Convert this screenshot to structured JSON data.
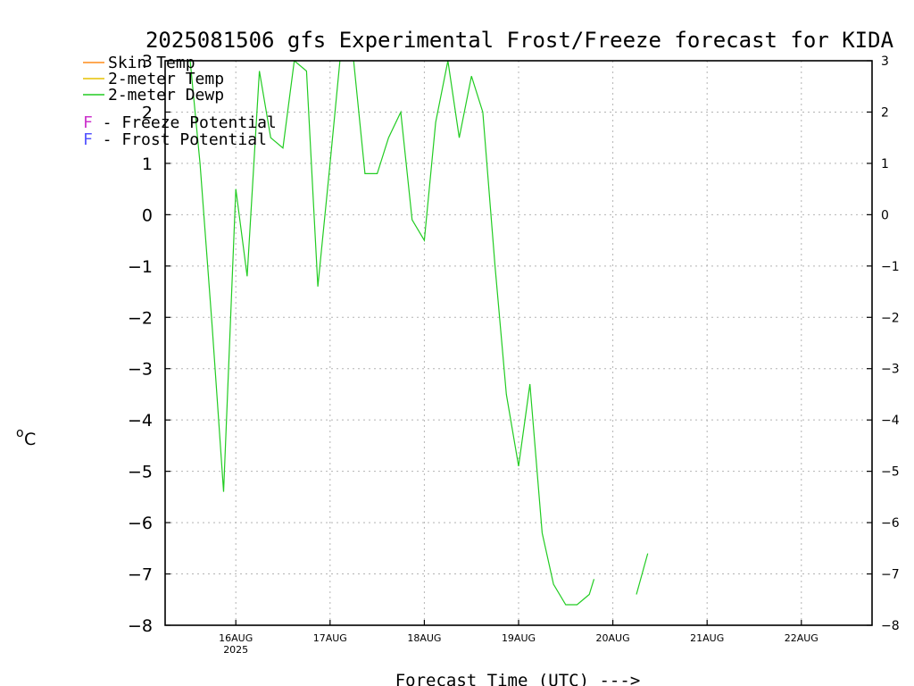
{
  "chart_data": {
    "type": "line",
    "title": "2025081506 gfs Experimental Frost/Freeze forecast for KIDA",
    "xlabel": "Forecast Time (UTC) --->",
    "ylabel_main": "o",
    "ylabel_unit": "C",
    "ylim": [
      -8,
      3
    ],
    "yticks": [
      -8,
      -7,
      -6,
      -5,
      -4,
      -3,
      -2,
      -1,
      0,
      1,
      2,
      3
    ],
    "yticks_labels": [
      "−8",
      "−7",
      "−6",
      "−5",
      "−4",
      "−3",
      "−2",
      "−1",
      "0",
      "1",
      "2",
      "3"
    ],
    "xlim": [
      15.25,
      22.75
    ],
    "x_unit": "days of Aug 2025 (UTC)",
    "xticks": [
      {
        "x": 16,
        "label": "16AUG",
        "sublabel": "2025"
      },
      {
        "x": 17,
        "label": "17AUG",
        "sublabel": ""
      },
      {
        "x": 18,
        "label": "18AUG",
        "sublabel": ""
      },
      {
        "x": 19,
        "label": "19AUG",
        "sublabel": ""
      },
      {
        "x": 20,
        "label": "20AUG",
        "sublabel": ""
      },
      {
        "x": 21,
        "label": "21AUG",
        "sublabel": ""
      },
      {
        "x": 22,
        "label": "22AUG",
        "sublabel": ""
      }
    ],
    "grid": true,
    "legend": {
      "placement": "top-left",
      "items": [
        {
          "label": "Skin Temp",
          "color": "#ff8c1a"
        },
        {
          "label": "2-meter Temp",
          "color": "#e6c200"
        },
        {
          "label": "2-meter Dewp",
          "color": "#22cc22"
        }
      ],
      "markers": [
        {
          "symbol": "F",
          "text": " - Freeze Potential",
          "color": "#cc33cc"
        },
        {
          "symbol": "F",
          "text": " - Frost Potential",
          "color": "#5555ff"
        }
      ]
    },
    "series": [
      {
        "name": "2-meter Dewp",
        "color": "#22cc22",
        "x": [
          15.25,
          15.37,
          15.5,
          15.62,
          15.75,
          15.87,
          16.0,
          16.12,
          16.25,
          16.37,
          16.5,
          16.62,
          16.75,
          16.87,
          17.0,
          17.12,
          17.25,
          17.37,
          17.5,
          17.62,
          17.75,
          17.87,
          18.0,
          18.12,
          18.25,
          18.37,
          18.5,
          18.62,
          18.75,
          18.87,
          19.0,
          19.12,
          19.25,
          19.37,
          19.5,
          19.62,
          19.75,
          19.8,
          20.17,
          20.25,
          20.37
        ],
        "y": [
          3.3,
          3.3,
          3.3,
          1.0,
          -2.2,
          -5.4,
          0.5,
          -1.2,
          2.8,
          1.5,
          1.3,
          3.0,
          2.8,
          -1.4,
          1.0,
          3.3,
          3.0,
          0.8,
          0.8,
          1.5,
          2.0,
          -0.1,
          -0.5,
          1.8,
          3.0,
          1.5,
          2.7,
          2.0,
          -1.0,
          -3.5,
          -4.9,
          -3.3,
          -6.2,
          -7.2,
          -7.6,
          -7.6,
          -7.4,
          -7.1,
          null,
          -7.4,
          -6.6
        ]
      }
    ]
  }
}
